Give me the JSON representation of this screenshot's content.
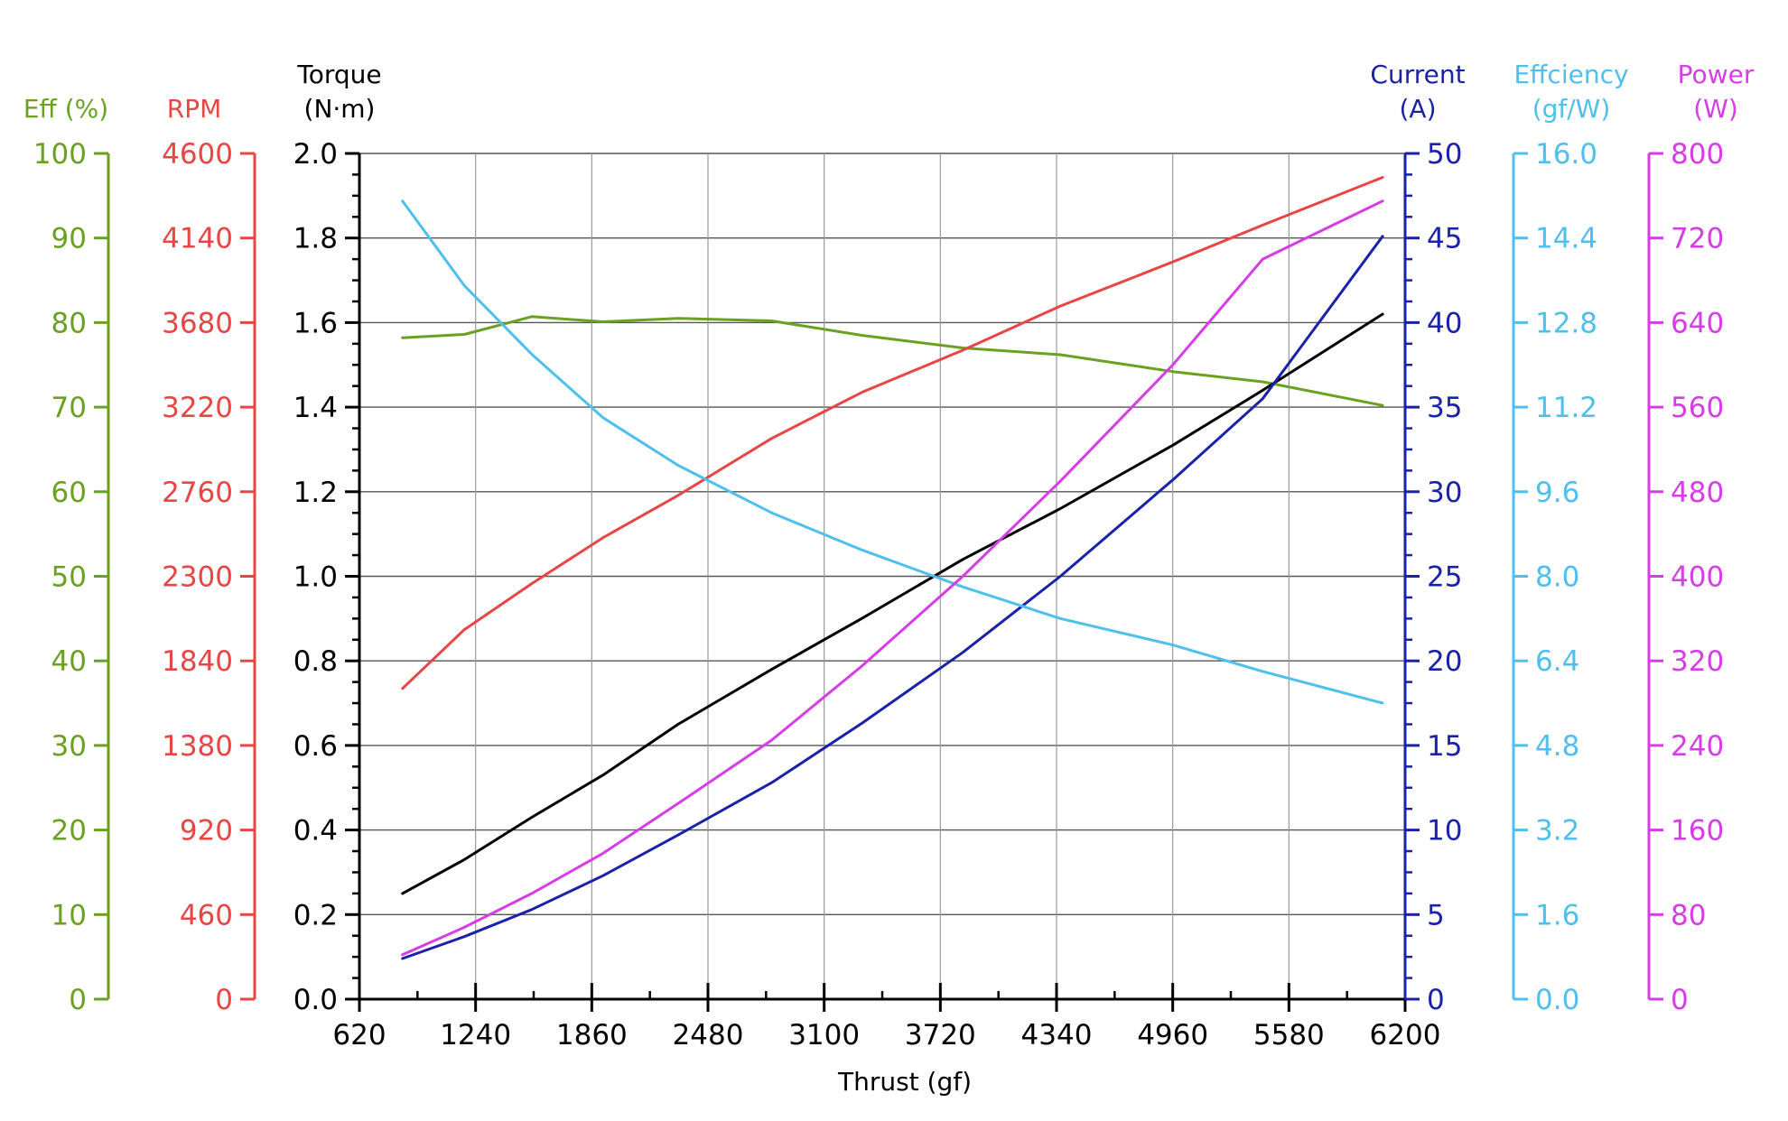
{
  "chart_data": {
    "type": "line",
    "xlabel": "Thrust (gf)",
    "xlim": [
      620,
      6200
    ],
    "xticks": [
      "620",
      "1240",
      "1860",
      "2480",
      "3100",
      "3720",
      "4340",
      "4960",
      "5580",
      "6200"
    ],
    "grid": true,
    "axes": [
      {
        "id": "eff",
        "side": "left",
        "title_lines": [
          "Eff (%)"
        ],
        "color": "#6aa121",
        "range": [
          0,
          100
        ],
        "ticks": [
          "0",
          "10",
          "20",
          "30",
          "40",
          "50",
          "60",
          "70",
          "80",
          "90",
          "100"
        ]
      },
      {
        "id": "rpm",
        "side": "left",
        "title_lines": [
          "RPM"
        ],
        "color": "#e84545",
        "range": [
          0,
          4600
        ],
        "ticks": [
          "0",
          "460",
          "920",
          "1380",
          "1840",
          "2300",
          "2760",
          "3220",
          "3680",
          "4140",
          "4600"
        ]
      },
      {
        "id": "torque",
        "side": "left",
        "title_lines": [
          "Torque",
          "(N·m)"
        ],
        "color": "#000000",
        "range": [
          0,
          2.0
        ],
        "ticks": [
          "0.0",
          "0.2",
          "0.4",
          "0.6",
          "0.8",
          "1.0",
          "1.2",
          "1.4",
          "1.6",
          "1.8",
          "2.0"
        ]
      },
      {
        "id": "current",
        "side": "right",
        "title_lines": [
          "Current",
          "(A)"
        ],
        "color": "#1a22a8",
        "range": [
          0,
          50
        ],
        "ticks": [
          "0",
          "5",
          "10",
          "15",
          "20",
          "25",
          "30",
          "35",
          "40",
          "45",
          "50"
        ]
      },
      {
        "id": "efficiency",
        "side": "right",
        "title_lines": [
          "Effciency",
          "(gf/W)"
        ],
        "color": "#4fbfee",
        "range": [
          0,
          16
        ],
        "ticks": [
          "0.0",
          "1.6",
          "3.2",
          "4.8",
          "6.4",
          "8.0",
          "9.6",
          "11.2",
          "12.8",
          "14.4",
          "16.0"
        ]
      },
      {
        "id": "power",
        "side": "right",
        "title_lines": [
          "Power",
          "(W)"
        ],
        "color": "#d63de6",
        "range": [
          0,
          800
        ],
        "ticks": [
          "0",
          "80",
          "160",
          "240",
          "320",
          "400",
          "480",
          "560",
          "640",
          "720",
          "800"
        ]
      }
    ],
    "series": [
      {
        "axis": "eff",
        "color": "#6aa121",
        "x": [
          850,
          1180,
          1540,
          1920,
          2320,
          2820,
          3300,
          3840,
          4360,
          4960,
          5440,
          6080
        ],
        "y": [
          78.2,
          78.6,
          80.7,
          80.1,
          80.5,
          80.2,
          78.5,
          77.0,
          76.2,
          74.2,
          73.0,
          70.2
        ]
      },
      {
        "axis": "rpm",
        "color": "#e84545",
        "x": [
          850,
          1180,
          1540,
          1920,
          2320,
          2820,
          3300,
          3840,
          4360,
          4960,
          5440,
          6080
        ],
        "y": [
          1690,
          2010,
          2260,
          2510,
          2740,
          3050,
          3300,
          3530,
          3770,
          4010,
          4210,
          4470
        ]
      },
      {
        "axis": "torque",
        "color": "#000000",
        "x": [
          850,
          1180,
          1540,
          1920,
          2320,
          2820,
          3300,
          3840,
          4360,
          4960,
          5440,
          6080
        ],
        "y": [
          0.25,
          0.33,
          0.43,
          0.53,
          0.65,
          0.78,
          0.9,
          1.04,
          1.16,
          1.31,
          1.44,
          1.62
        ]
      },
      {
        "axis": "current",
        "color": "#1a22a8",
        "x": [
          850,
          1180,
          1540,
          1920,
          2320,
          2820,
          3300,
          3840,
          4360,
          4960,
          5440,
          6080
        ],
        "y": [
          2.4,
          3.7,
          5.3,
          7.3,
          9.7,
          12.8,
          16.3,
          20.5,
          25.0,
          30.7,
          35.5,
          45.1
        ]
      },
      {
        "axis": "efficiency",
        "color": "#4fbfee",
        "x": [
          850,
          1180,
          1540,
          1920,
          2320,
          2820,
          3300,
          3840,
          4360,
          4960,
          5440,
          6080
        ],
        "y": [
          15.1,
          13.5,
          12.2,
          11.0,
          10.1,
          9.2,
          8.5,
          7.8,
          7.2,
          6.7,
          6.2,
          5.6
        ]
      },
      {
        "axis": "power",
        "color": "#d63de6",
        "x": [
          850,
          1180,
          1540,
          1920,
          2320,
          2820,
          3300,
          3840,
          4360,
          4960,
          5440,
          6080
        ],
        "y": [
          42,
          68,
          100,
          138,
          185,
          245,
          315,
          400,
          490,
          600,
          700,
          755
        ]
      }
    ]
  }
}
